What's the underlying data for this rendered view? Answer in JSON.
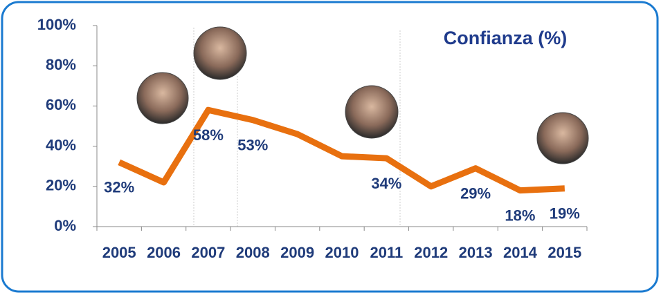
{
  "chart_data": {
    "type": "line",
    "title": "Confianza (%)",
    "categories": [
      "2005",
      "2006",
      "2007",
      "2008",
      "2009",
      "2010",
      "2011",
      "2012",
      "2013",
      "2014",
      "2015"
    ],
    "values": [
      32,
      22,
      58,
      53,
      46,
      35,
      34,
      20,
      29,
      18,
      19
    ],
    "value_labels": [
      "32%",
      null,
      "58%",
      "53%",
      null,
      null,
      "34%",
      null,
      "29%",
      "18%",
      "19%"
    ],
    "color": "#e8700f",
    "ylim": [
      0,
      100
    ],
    "yticks": [
      {
        "value": 0,
        "label": "0%"
      },
      {
        "value": 20,
        "label": "20%"
      },
      {
        "value": 40,
        "label": "40%"
      },
      {
        "value": 60,
        "label": "60%"
      },
      {
        "value": 80,
        "label": "80%"
      },
      {
        "value": 100,
        "label": "100%"
      }
    ]
  }
}
